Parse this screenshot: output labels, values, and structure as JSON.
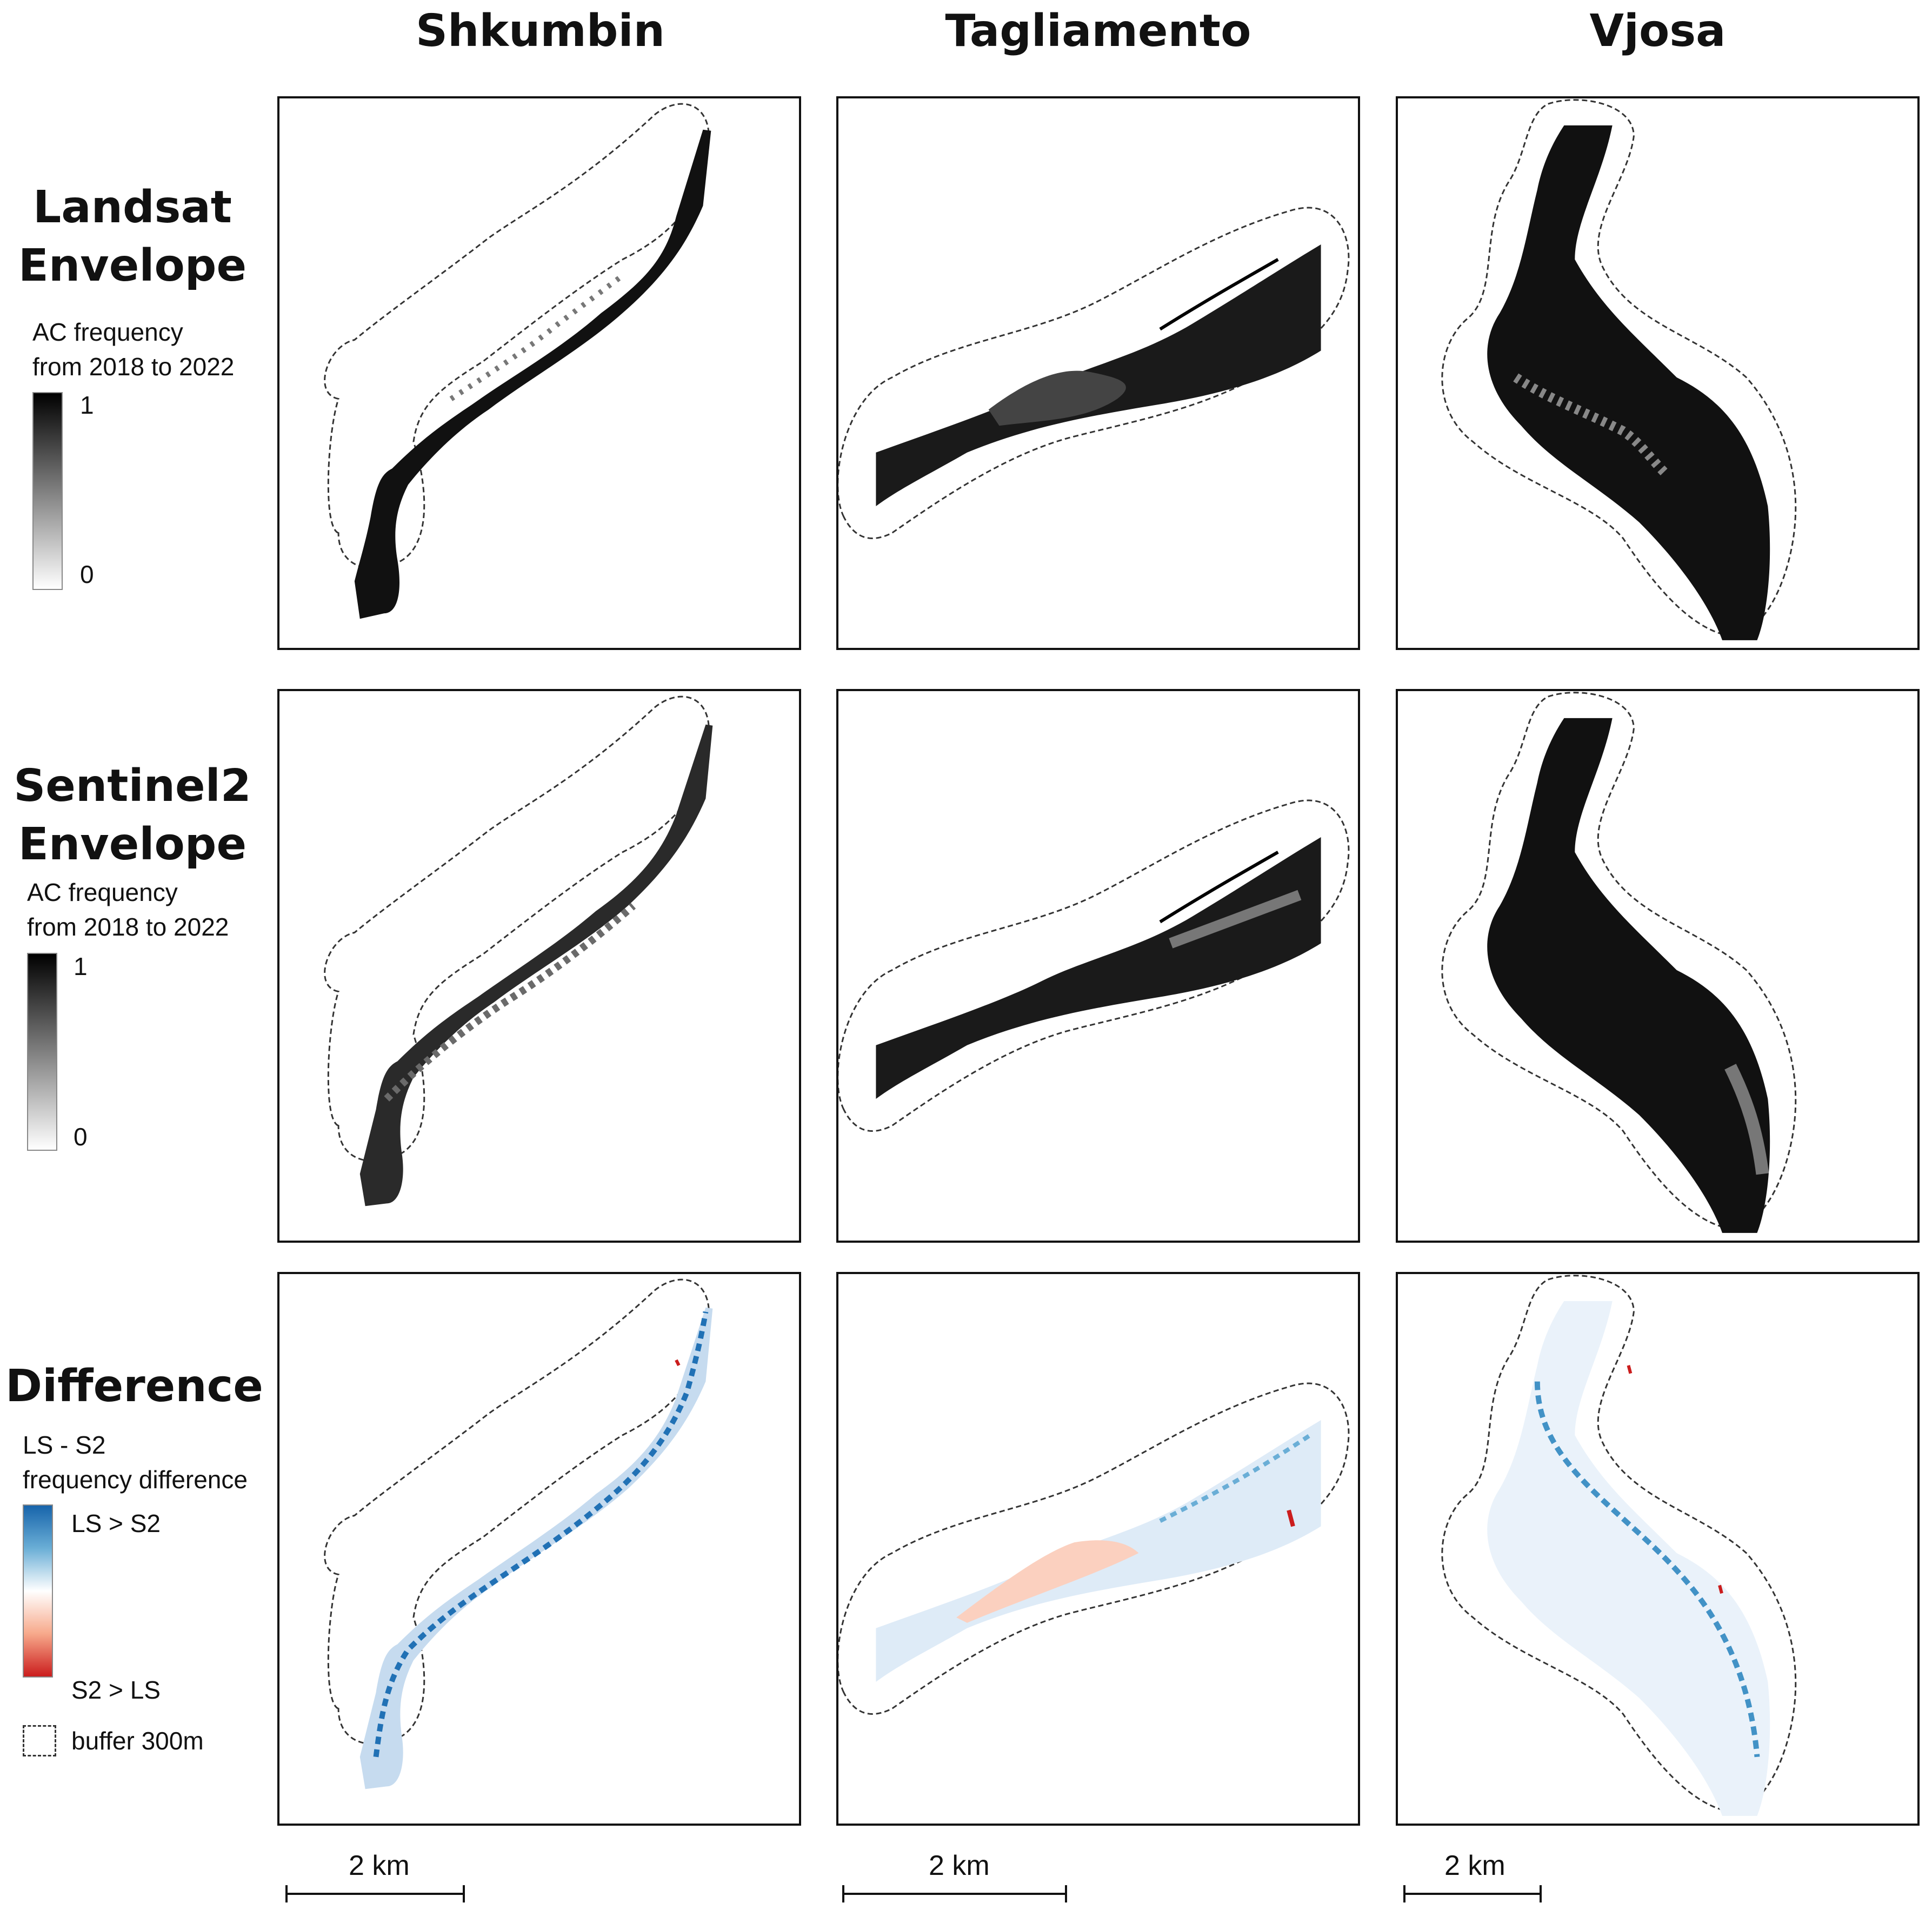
{
  "columns": [
    {
      "name": "Shkumbin",
      "scale": "2 km"
    },
    {
      "name": "Tagliamento",
      "scale": "2 km"
    },
    {
      "name": "Vjosa",
      "scale": "2 km"
    }
  ],
  "rows": {
    "landsat": {
      "title_line1": "Landsat",
      "title_line2": "Envelope",
      "legend_line1": "AC frequency",
      "legend_line2": "from 2018 to 2022",
      "max_label": "1",
      "min_label": "0"
    },
    "sentinel": {
      "title_line1": "Sentinel2",
      "title_line2": "Envelope",
      "legend_line1": "AC frequency",
      "legend_line2": "from 2018 to 2022",
      "max_label": "1",
      "min_label": "0"
    },
    "difference": {
      "title": "Difference",
      "legend_line1": "LS - S2",
      "legend_line2": "frequency difference",
      "top_label": "LS > S2",
      "bottom_label": "S2 > LS",
      "buffer_label": "buffer 300m"
    }
  },
  "colors": {
    "frequency_high": "#000000",
    "frequency_low": "#ffffff",
    "diff_ls_greater": "#1764ab",
    "diff_s2_greater": "#cb1d1d",
    "buffer_line": "#333333"
  }
}
